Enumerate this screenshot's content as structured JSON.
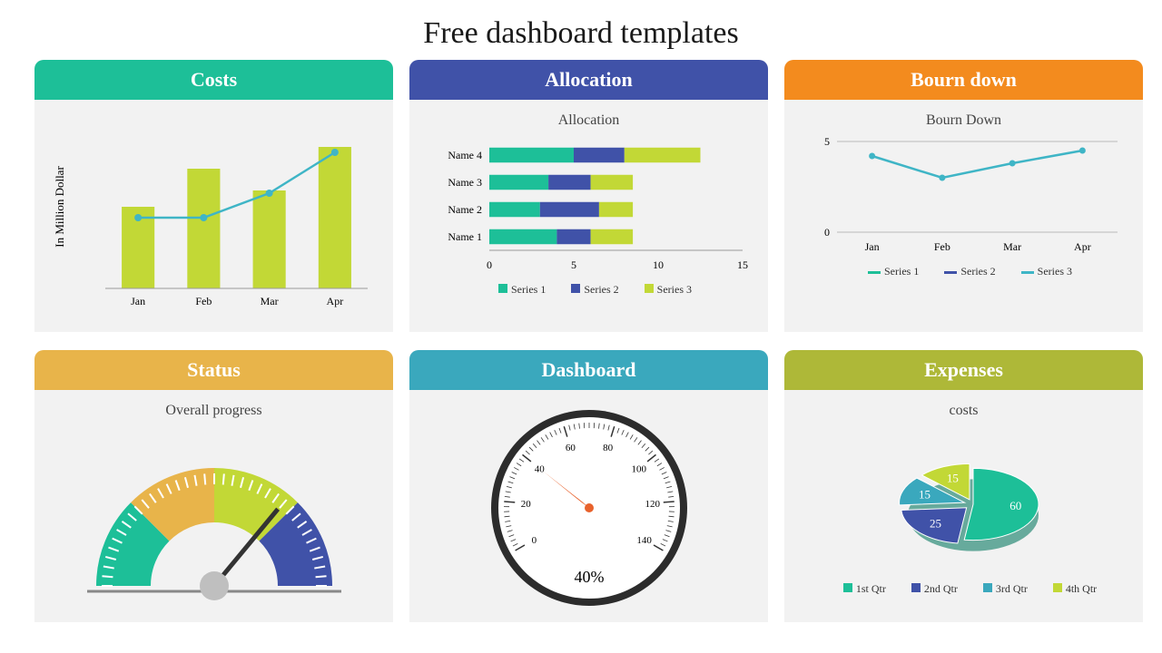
{
  "title": "Free dashboard templates",
  "cards": {
    "costs": {
      "header": "Costs",
      "header_bg": "#1dbf98",
      "type": "bar+line",
      "ylabel": "In Million Dollar",
      "categories": [
        "Jan",
        "Feb",
        "Mar",
        "Apr"
      ],
      "bar_values": [
        3.0,
        4.4,
        3.6,
        5.2
      ],
      "line_values": [
        2.6,
        2.6,
        3.5,
        5.0
      ],
      "bar_color": "#c2d836",
      "line_color": "#3fb5c6",
      "label_fontsize": 12,
      "ylim": [
        0,
        6
      ]
    },
    "allocation": {
      "header": "Allocation",
      "header_bg": "#4052a8",
      "subtitle": "Allocation",
      "type": "stacked-hbar",
      "rows": [
        "Name 4",
        "Name 3",
        "Name 2",
        "Name 1"
      ],
      "series": [
        "Series 1",
        "Series 2",
        "Series 3"
      ],
      "series_colors": [
        "#1dbf98",
        "#4052a8",
        "#c2d836"
      ],
      "data": [
        [
          5.0,
          3.0,
          4.5
        ],
        [
          3.5,
          2.5,
          2.5
        ],
        [
          3.0,
          3.5,
          2.0
        ],
        [
          4.0,
          2.0,
          2.5
        ]
      ],
      "xlim": [
        0,
        15
      ],
      "xticks": [
        0,
        5,
        10,
        15
      ],
      "label_fontsize": 12
    },
    "bourn": {
      "header": "Bourn down",
      "header_bg": "#f38b1e",
      "subtitle": "Bourn Down",
      "type": "line",
      "categories": [
        "Jan",
        "Feb",
        "Mar",
        "Apr"
      ],
      "series": [
        "Series 1",
        "Series 2",
        "Series 3"
      ],
      "series_colors": [
        "#1dbf98",
        "#4052a8",
        "#3fb5c6"
      ],
      "values": [
        4.2,
        3.0,
        3.8,
        4.5
      ],
      "line_color": "#3fb5c6",
      "ylim": [
        0,
        5
      ],
      "yticks": [
        0,
        5
      ],
      "label_fontsize": 12
    },
    "status": {
      "header": "Status",
      "header_bg": "#e8b44a",
      "subtitle": "Overall progress",
      "type": "gauge-semi",
      "segments": 4,
      "segment_colors": [
        "#1dbf98",
        "#e8b44a",
        "#c2d836",
        "#4052a8"
      ],
      "needle_color": "#333333",
      "needle_value": 0.72,
      "base_color": "#bfbfbf"
    },
    "dashboard": {
      "header": "Dashboard",
      "header_bg": "#3aa8bd",
      "type": "dial",
      "min": 0,
      "max": 140,
      "ticks": [
        0,
        20,
        40,
        60,
        80,
        100,
        120,
        140
      ],
      "value": 40,
      "value_label": "40%",
      "rim_color": "#2c2c2c",
      "face_color": "#ffffff",
      "needle_color": "#e8622c",
      "tick_color": "#333333"
    },
    "expenses": {
      "header": "Expenses",
      "header_bg": "#aeb838",
      "subtitle": "costs",
      "type": "pie-3d",
      "labels": [
        "1st Qtr",
        "2nd Qtr",
        "3rd Qtr",
        "4th Qtr"
      ],
      "values": [
        60,
        25,
        15,
        15
      ],
      "colors": [
        "#1dbf98",
        "#4052a8",
        "#3aa8bd",
        "#c2d836"
      ],
      "label_fontsize": 12
    }
  }
}
